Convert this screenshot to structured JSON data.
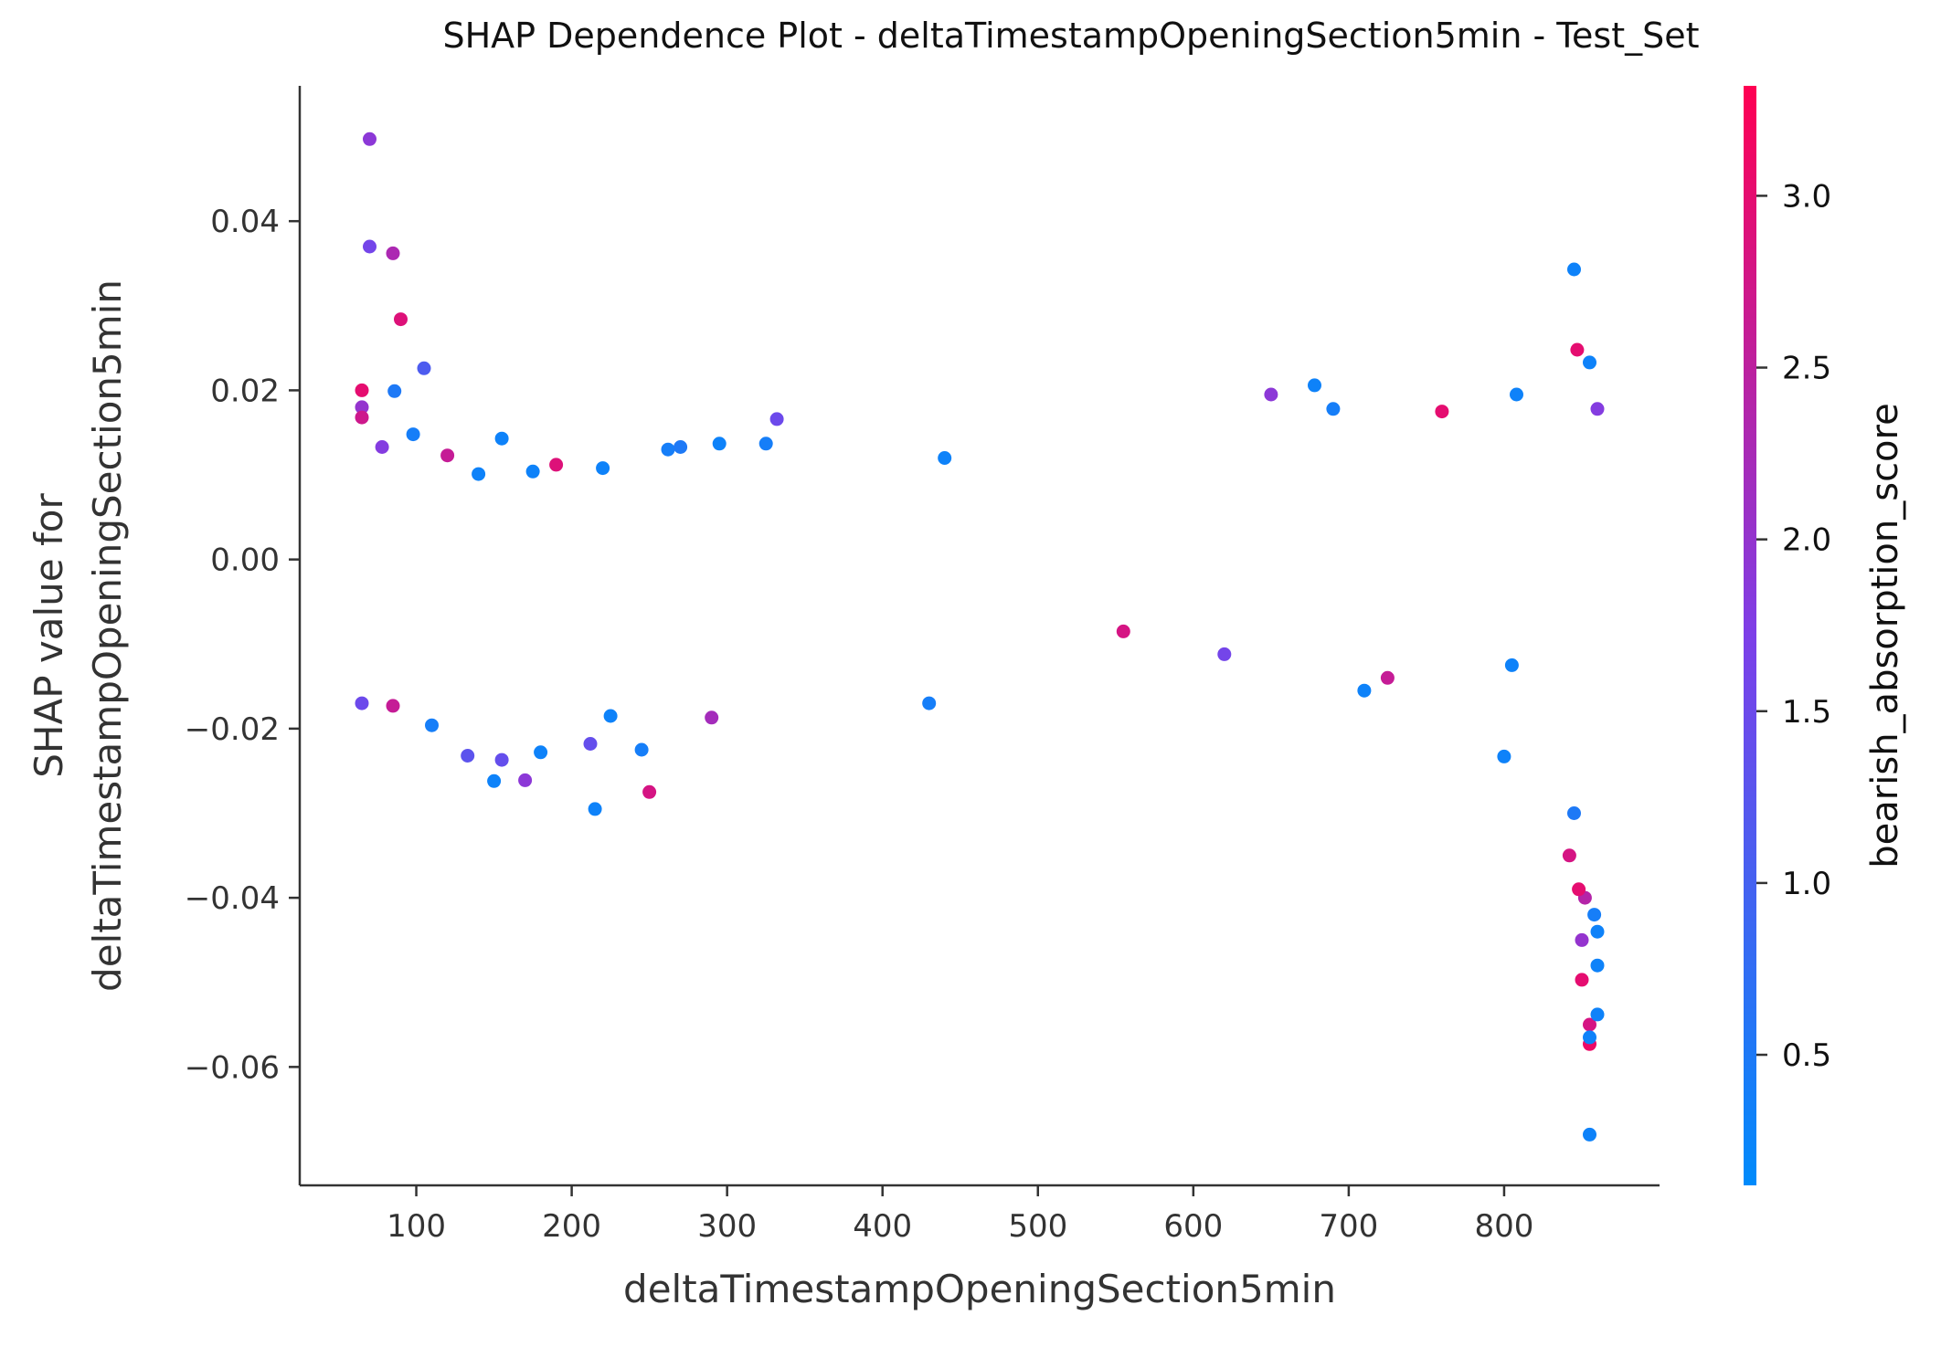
{
  "chart_data": {
    "type": "scatter",
    "title": "SHAP Dependence Plot - deltaTimestampOpeningSection5min - Test_Set",
    "xlabel": "deltaTimestampOpeningSection5min",
    "ylabel_lines": [
      "SHAP value for",
      "deltaTimestampOpeningSection5min"
    ],
    "xlim": [
      25,
      900
    ],
    "ylim": [
      -0.074,
      0.056
    ],
    "xticks": [
      100,
      200,
      300,
      400,
      500,
      600,
      700,
      800
    ],
    "xtick_labels": [
      "100",
      "200",
      "300",
      "400",
      "500",
      "600",
      "700",
      "800"
    ],
    "yticks": [
      0.04,
      0.02,
      0.0,
      -0.02,
      -0.04,
      -0.06
    ],
    "ytick_labels": [
      "0.04",
      "0.02",
      "0.00",
      "−0.02",
      "−0.04",
      "−0.06"
    ],
    "colorbar": {
      "label": "bearish_absorption_score",
      "range": [
        0.12,
        3.32
      ],
      "ticks": [
        0.5,
        1.0,
        1.5,
        2.0,
        2.5,
        3.0
      ],
      "tick_labels": [
        "0.5",
        "1.0",
        "1.5",
        "2.0",
        "2.5",
        "3.0"
      ],
      "colors": [
        "#008bfb",
        "#7d3fe8",
        "#ff0052"
      ]
    },
    "grid": false,
    "legend": "colorbar-right",
    "points": [
      {
        "x": 70,
        "y": 0.0497,
        "c": 1.9
      },
      {
        "x": 70,
        "y": 0.037,
        "c": 1.6
      },
      {
        "x": 85,
        "y": 0.0362,
        "c": 2.3
      },
      {
        "x": 90,
        "y": 0.0284,
        "c": 2.9
      },
      {
        "x": 105,
        "y": 0.0226,
        "c": 1.1
      },
      {
        "x": 65,
        "y": 0.02,
        "c": 3.0
      },
      {
        "x": 86,
        "y": 0.0199,
        "c": 0.5
      },
      {
        "x": 65,
        "y": 0.018,
        "c": 2.0
      },
      {
        "x": 65,
        "y": 0.0168,
        "c": 2.7
      },
      {
        "x": 98,
        "y": 0.0148,
        "c": 0.4
      },
      {
        "x": 78,
        "y": 0.0133,
        "c": 1.8
      },
      {
        "x": 155,
        "y": 0.0143,
        "c": 0.3
      },
      {
        "x": 120,
        "y": 0.0123,
        "c": 2.6
      },
      {
        "x": 140,
        "y": 0.0101,
        "c": 0.3
      },
      {
        "x": 220,
        "y": 0.0108,
        "c": 0.3
      },
      {
        "x": 295,
        "y": 0.0137,
        "c": 0.3
      },
      {
        "x": 325,
        "y": 0.0137,
        "c": 0.4
      },
      {
        "x": 332,
        "y": 0.0166,
        "c": 1.5
      },
      {
        "x": 262,
        "y": 0.013,
        "c": 0.4
      },
      {
        "x": 270,
        "y": 0.0133,
        "c": 0.5
      },
      {
        "x": 190,
        "y": 0.0112,
        "c": 2.9
      },
      {
        "x": 175,
        "y": 0.0104,
        "c": 0.3
      },
      {
        "x": 440,
        "y": 0.012,
        "c": 0.3
      },
      {
        "x": 225,
        "y": -0.0185,
        "c": 0.3
      },
      {
        "x": 245,
        "y": -0.0225,
        "c": 0.4
      },
      {
        "x": 212,
        "y": -0.0218,
        "c": 1.4
      },
      {
        "x": 133,
        "y": -0.0232,
        "c": 1.3
      },
      {
        "x": 150,
        "y": -0.0262,
        "c": 0.3
      },
      {
        "x": 155,
        "y": -0.0237,
        "c": 1.4
      },
      {
        "x": 170,
        "y": -0.0261,
        "c": 1.9
      },
      {
        "x": 180,
        "y": -0.0228,
        "c": 0.3
      },
      {
        "x": 215,
        "y": -0.0295,
        "c": 0.3
      },
      {
        "x": 250,
        "y": -0.0275,
        "c": 2.8
      },
      {
        "x": 85,
        "y": -0.0173,
        "c": 2.6
      },
      {
        "x": 65,
        "y": -0.017,
        "c": 1.5
      },
      {
        "x": 110,
        "y": -0.0196,
        "c": 0.4
      },
      {
        "x": 290,
        "y": -0.0187,
        "c": 2.2
      },
      {
        "x": 430,
        "y": -0.017,
        "c": 0.4
      },
      {
        "x": 555,
        "y": -0.0085,
        "c": 2.8
      },
      {
        "x": 620,
        "y": -0.0112,
        "c": 1.6
      },
      {
        "x": 710,
        "y": -0.0155,
        "c": 0.3
      },
      {
        "x": 725,
        "y": -0.014,
        "c": 2.6
      },
      {
        "x": 800,
        "y": -0.0233,
        "c": 0.3
      },
      {
        "x": 805,
        "y": -0.0125,
        "c": 0.3
      },
      {
        "x": 678,
        "y": 0.0206,
        "c": 0.3
      },
      {
        "x": 650,
        "y": 0.0195,
        "c": 1.9
      },
      {
        "x": 690,
        "y": 0.0178,
        "c": 0.4
      },
      {
        "x": 760,
        "y": 0.0175,
        "c": 3.0
      },
      {
        "x": 808,
        "y": 0.0195,
        "c": 0.3
      },
      {
        "x": 845,
        "y": 0.0343,
        "c": 0.3
      },
      {
        "x": 847,
        "y": 0.0248,
        "c": 3.0
      },
      {
        "x": 855,
        "y": 0.0233,
        "c": 0.3
      },
      {
        "x": 860,
        "y": 0.0178,
        "c": 1.8
      },
      {
        "x": 850,
        "y": -0.0497,
        "c": 3.0
      },
      {
        "x": 855,
        "y": -0.055,
        "c": 2.8
      },
      {
        "x": 855,
        "y": -0.0573,
        "c": 3.1
      },
      {
        "x": 855,
        "y": -0.0565,
        "c": 0.3
      },
      {
        "x": 855,
        "y": -0.068,
        "c": 0.3
      },
      {
        "x": 860,
        "y": -0.0538,
        "c": 0.3
      },
      {
        "x": 860,
        "y": -0.048,
        "c": 0.3
      },
      {
        "x": 842,
        "y": -0.035,
        "c": 2.8
      },
      {
        "x": 845,
        "y": -0.03,
        "c": 0.5
      },
      {
        "x": 852,
        "y": -0.04,
        "c": 2.4
      },
      {
        "x": 858,
        "y": -0.042,
        "c": 0.4
      },
      {
        "x": 850,
        "y": -0.045,
        "c": 2.0
      },
      {
        "x": 860,
        "y": -0.044,
        "c": 0.3
      },
      {
        "x": 848,
        "y": -0.039,
        "c": 3.0
      }
    ]
  }
}
